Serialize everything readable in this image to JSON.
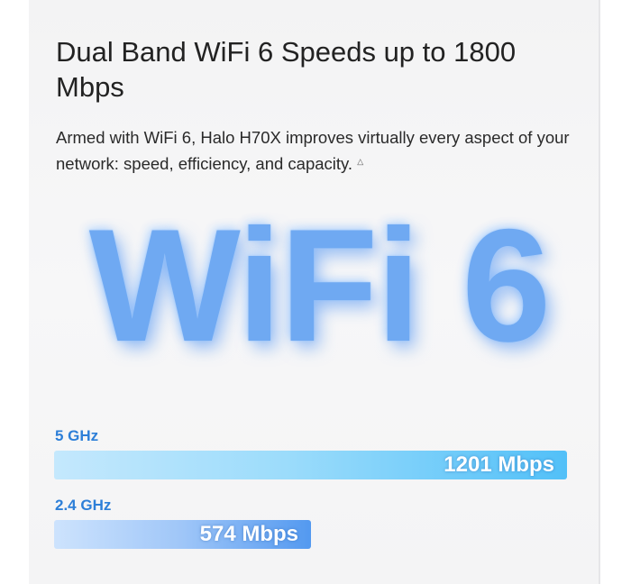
{
  "heading": "Dual Band WiFi 6 Speeds up to 1800 Mbps",
  "description": "Armed with WiFi 6, Halo H70X improves virtually every aspect of your network: speed, efficiency, and capacity.",
  "footnote_mark": "△",
  "logo_text": "WiFi 6",
  "bands": [
    {
      "label": "5 GHz",
      "speed": "1201 Mbps",
      "value": 1201,
      "color": "#52c0f8"
    },
    {
      "label": "2.4 GHz",
      "speed": "574 Mbps",
      "value": 574,
      "color": "#5399f0"
    }
  ]
}
